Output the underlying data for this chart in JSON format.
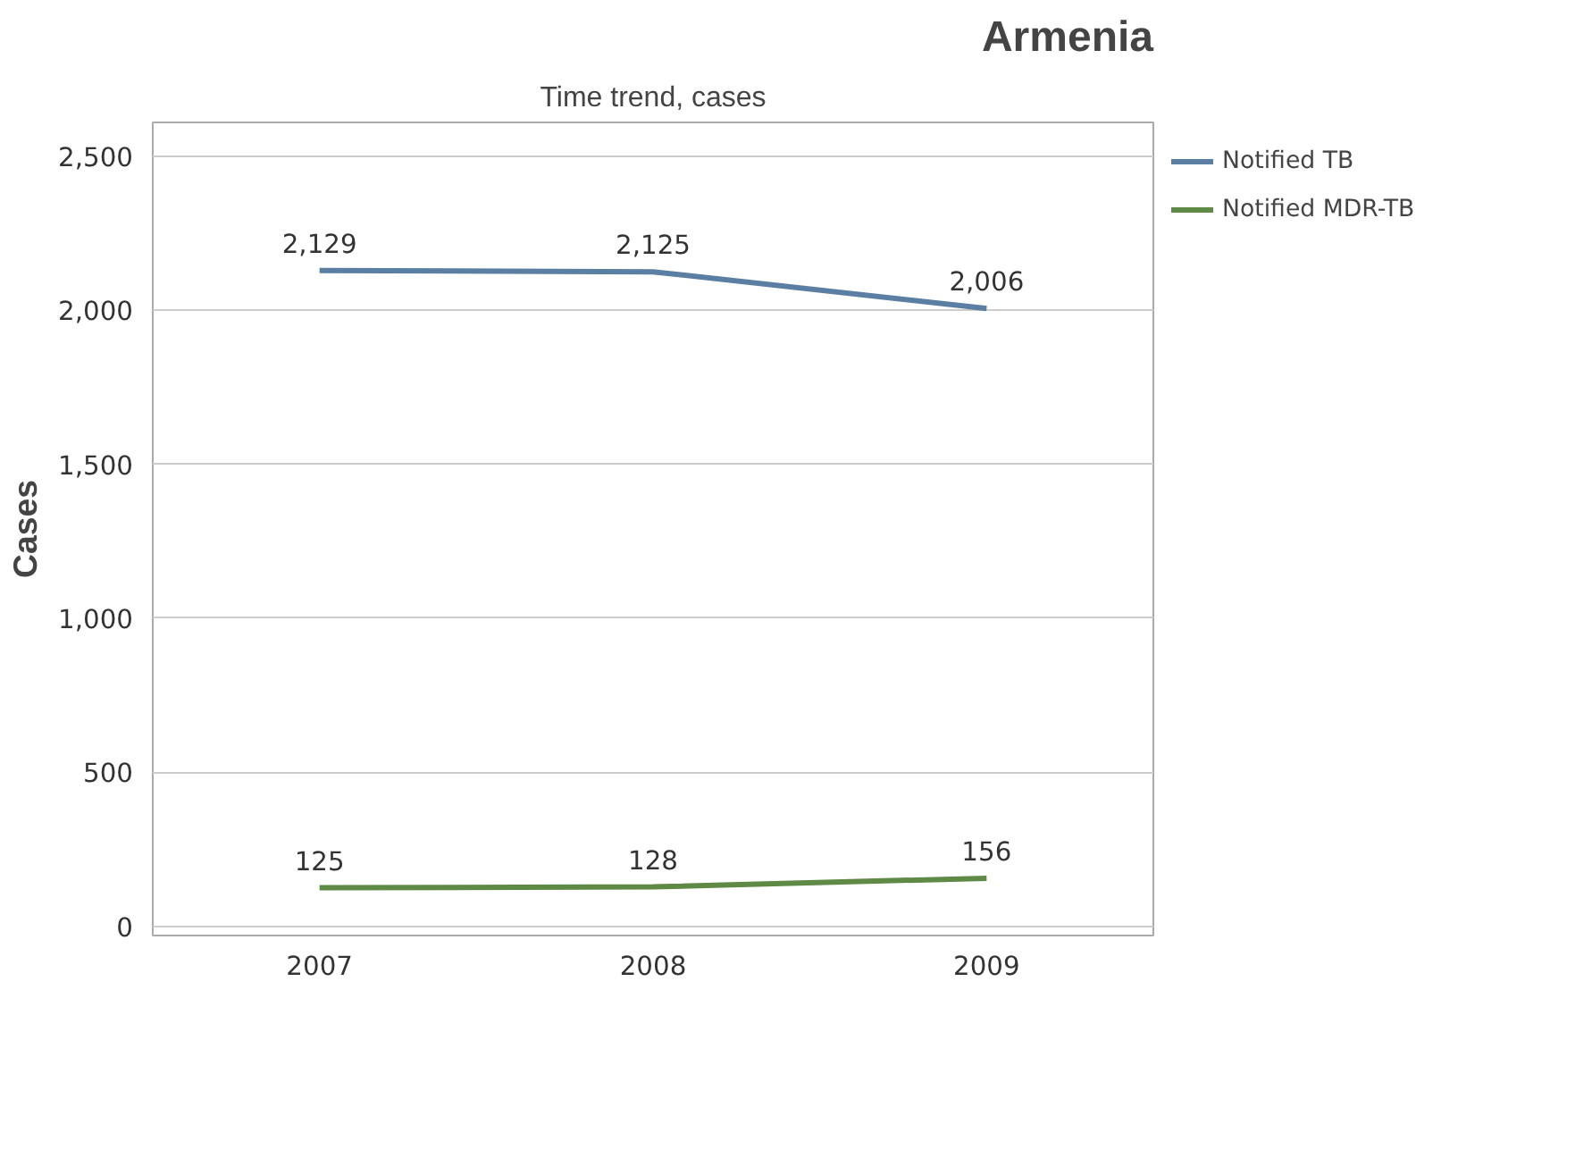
{
  "chart_data": {
    "type": "line",
    "title": "Armenia",
    "subtitle": "Time trend, cases",
    "ylabel": "Cases",
    "x": [
      2007,
      2008,
      2009
    ],
    "xlim": [
      2006.5,
      2009.5
    ],
    "xticks": [
      2007,
      2008,
      2009
    ],
    "ylim": [
      -30,
      2610
    ],
    "yticks": [
      {
        "value": 0,
        "label": "0"
      },
      {
        "value": 500,
        "label": "500"
      },
      {
        "value": 1000,
        "label": "1,000"
      },
      {
        "value": 1500,
        "label": "1,500"
      },
      {
        "value": 2000,
        "label": "2,000"
      },
      {
        "value": 2500,
        "label": "2,500"
      }
    ],
    "series": [
      {
        "name": "Notified TB",
        "color": "#5a7fa3",
        "values": [
          2129,
          2125,
          2006
        ],
        "value_labels": [
          "2,129",
          "2,125",
          "2,006"
        ]
      },
      {
        "name": "Notified MDR-TB",
        "color": "#5e8a45",
        "values": [
          125,
          128,
          156
        ],
        "value_labels": [
          "125",
          "128",
          "156"
        ]
      }
    ],
    "grid": "y",
    "legend": "top right",
    "marker": "none",
    "line_style": "solid"
  }
}
